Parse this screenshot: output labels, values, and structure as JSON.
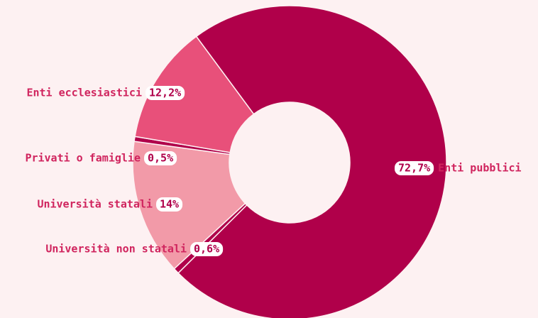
{
  "chart_data": {
    "type": "donut",
    "categories": [
      "Enti pubblici",
      "Università non statali",
      "Università statali",
      "Privati o famiglie",
      "Enti ecclesiastici"
    ],
    "values": [
      72.7,
      0.6,
      14,
      0.5,
      12.2
    ],
    "value_labels": [
      "72,7%",
      "0,6%",
      "14%",
      "0,5%",
      "12,2%"
    ],
    "colors": [
      "#b0004a",
      "#b0004a",
      "#f29aa8",
      "#b0004a",
      "#e8507a"
    ]
  }
}
